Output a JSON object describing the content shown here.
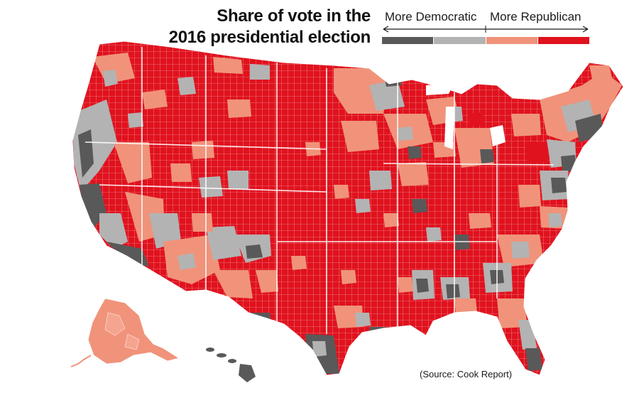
{
  "title": {
    "line1": "Share of vote in the",
    "line2": "2016 presidential election"
  },
  "legend": {
    "left_label": "More Democratic",
    "right_label": "More Republican",
    "swatches": [
      {
        "name": "strong-democratic",
        "color": "#595959"
      },
      {
        "name": "lean-democratic",
        "color": "#b3b3b3"
      },
      {
        "name": "lean-republican",
        "color": "#f0937a"
      },
      {
        "name": "strong-republican",
        "color": "#e0121e"
      }
    ]
  },
  "source": "(Source: Cook Report)",
  "colors": {
    "strong_dem": "#595959",
    "lean_dem": "#b3b3b3",
    "lean_rep": "#f0937a",
    "strong_rep": "#e0121e",
    "county_border": "#ffffff"
  }
}
